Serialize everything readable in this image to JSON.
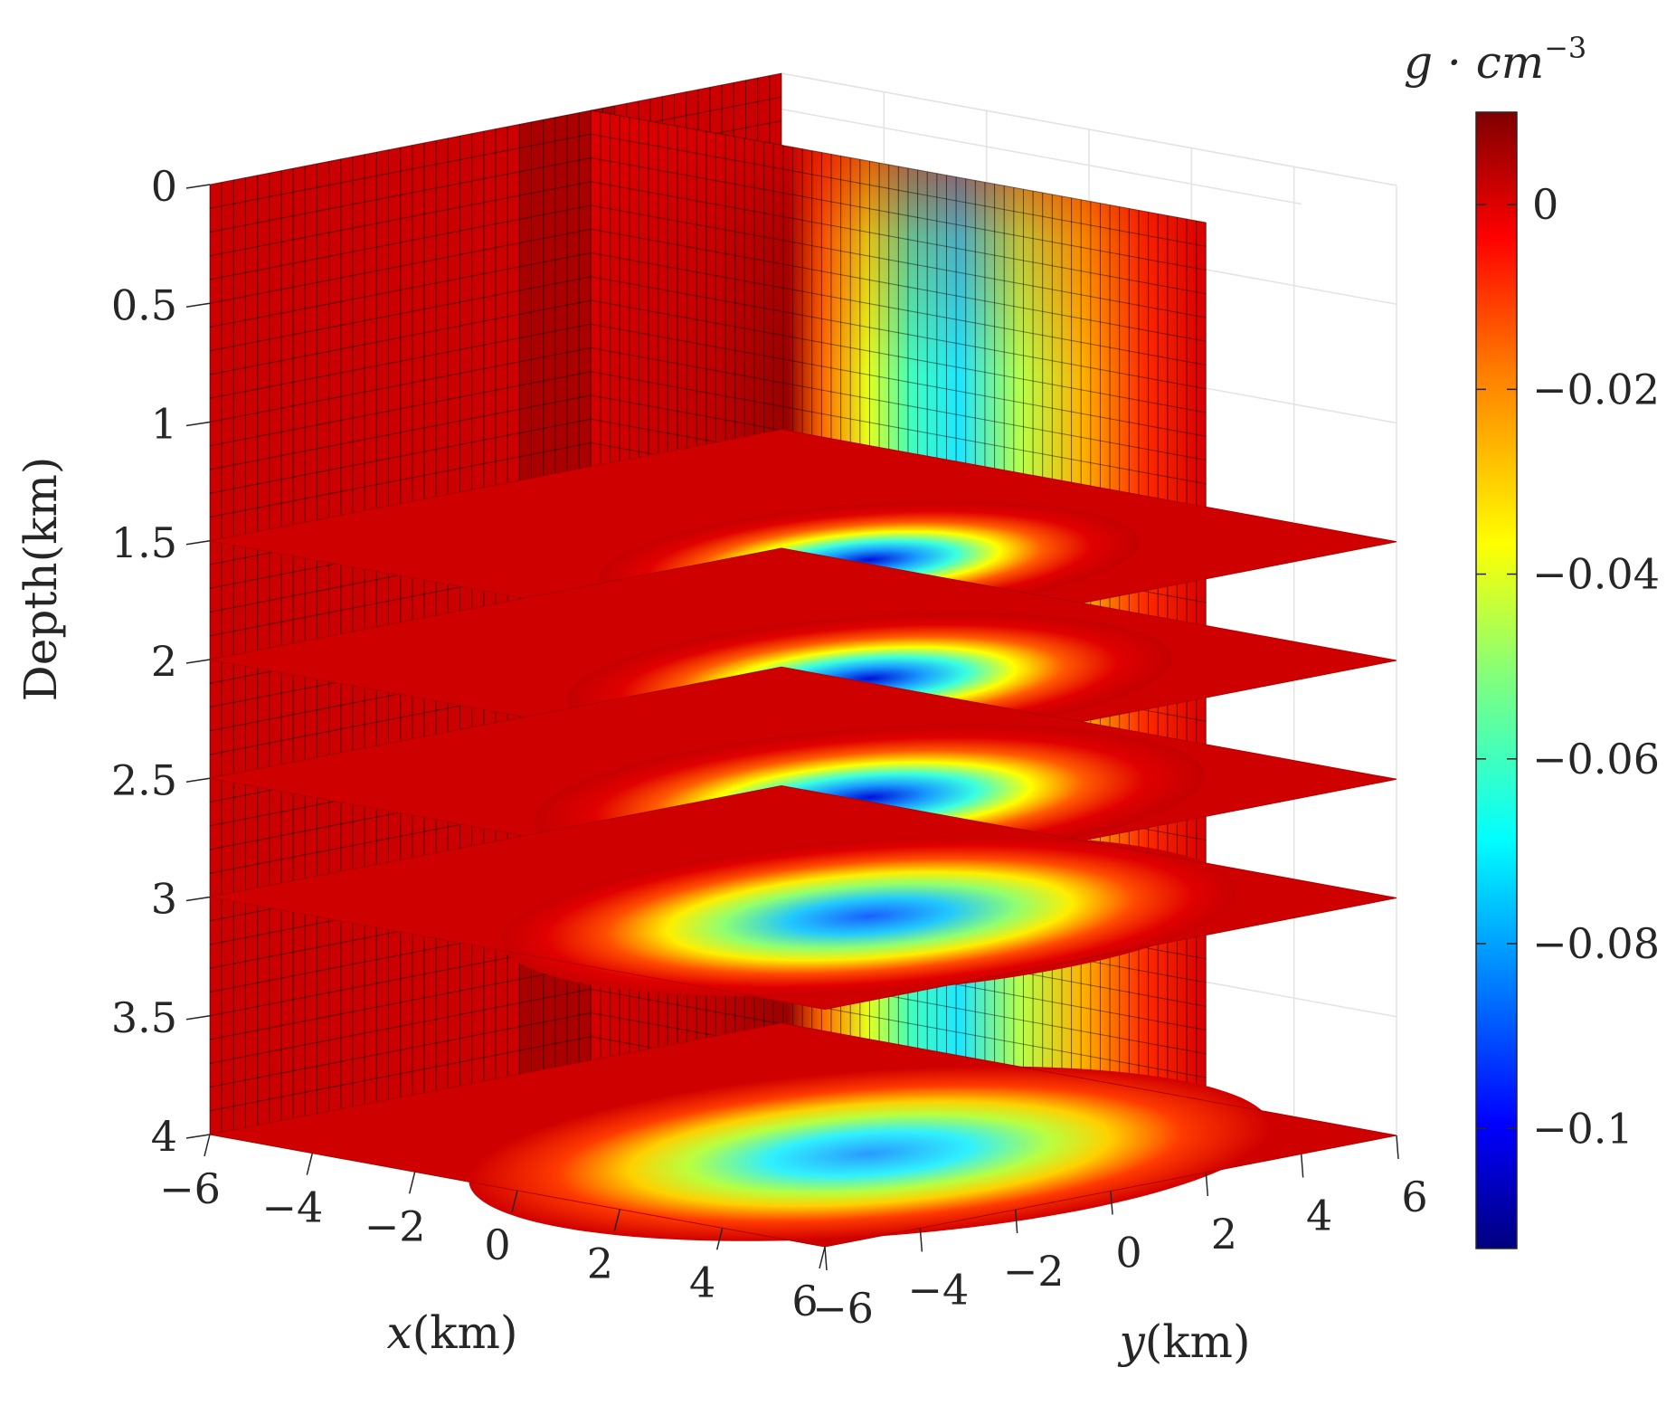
{
  "chart_data": {
    "type": "heatmap",
    "subtype": "3d-slice",
    "xlabel_var": "x",
    "xlabel_unit": "(km)",
    "ylabel_var": "y",
    "ylabel_unit": "(km)",
    "zlabel": "Depth(km)",
    "x_ticks": [
      "−6",
      "−4",
      "−2",
      "0",
      "2",
      "4",
      "6"
    ],
    "y_ticks": [
      "−6",
      "−4",
      "−2",
      "0",
      "2",
      "4",
      "6"
    ],
    "z_ticks": [
      "0",
      "0.5",
      "1",
      "1.5",
      "2",
      "2.5",
      "3",
      "3.5",
      "4"
    ],
    "xlim": [
      -6,
      6
    ],
    "ylim": [
      -6,
      6
    ],
    "zlim": [
      0,
      4
    ],
    "z_direction": "reversed",
    "horizontal_slice_depths": [
      1.5,
      2,
      2.5,
      3,
      4
    ],
    "vertical_slices": [
      "x = -6",
      "y = 2"
    ],
    "anomaly_center": {
      "x": 2,
      "y": 0
    },
    "anomaly_min_density_contrast": -0.11,
    "grid": true,
    "colorbar": {
      "unit_base": "g · cm",
      "unit_exp": "−3",
      "ticks": [
        "0",
        "−0.02",
        "−0.04",
        "−0.06",
        "−0.08",
        "−0.1"
      ],
      "tick_values": [
        0,
        -0.02,
        -0.04,
        -0.06,
        -0.08,
        -0.1
      ],
      "range": [
        -0.113,
        0.01
      ],
      "colormap": "jet",
      "position": "right"
    }
  }
}
